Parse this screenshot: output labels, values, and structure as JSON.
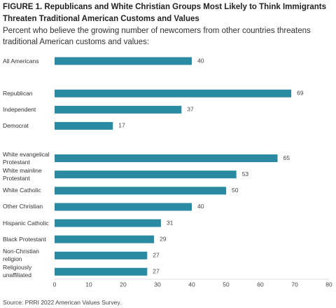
{
  "chart_data": {
    "type": "bar",
    "orientation": "horizontal",
    "title": "FIGURE 1. Republicans and White Christian Groups Most Likely to Think Immigrants Threaten Traditional American Customs and Values",
    "subtitle": "Percent who believe the growing number of newcomers from other countries threatens traditional American customs and values:",
    "categories": [
      "All Americans",
      "Republican",
      "Independent",
      "Democrat",
      "White evangelical\nProtestant",
      "White mainline\nProtestant",
      "White Catholic",
      "Other Christian",
      "Hispanic Catholic",
      "Black Protestant",
      "Non-Christian\nreligion",
      "Religiously\nunaffiliated"
    ],
    "values": [
      40,
      69,
      37,
      17,
      65,
      53,
      50,
      40,
      31,
      29,
      27,
      27
    ],
    "color": "#2a8aa1",
    "xlim": [
      0,
      80
    ],
    "xticks": [
      0,
      10,
      20,
      30,
      40,
      50,
      60,
      70,
      80
    ],
    "source": "Source: PRRI 2022 American Values Survey."
  }
}
